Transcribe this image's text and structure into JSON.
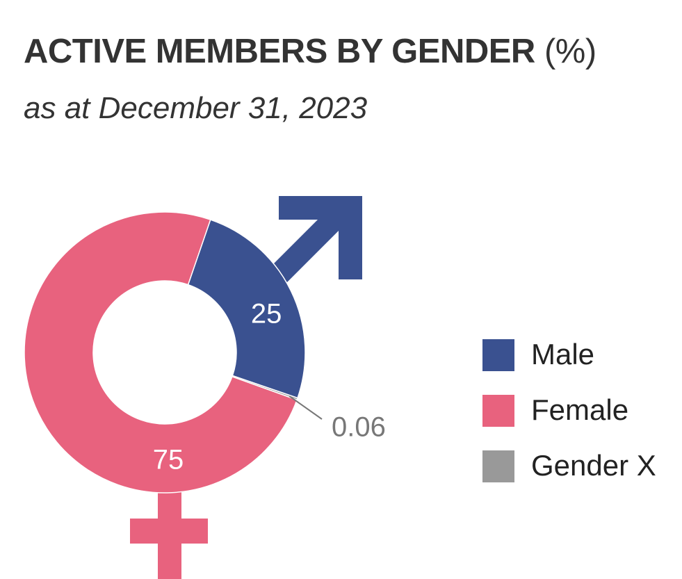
{
  "title": {
    "main": "ACTIVE MEMBERS BY GENDER",
    "unit": "(%)"
  },
  "subtitle": "as at December 31, 2023",
  "chart_data": {
    "type": "pie",
    "variant": "donut",
    "title": "ACTIVE MEMBERS BY GENDER (%)",
    "subtitle": "as at December 31, 2023",
    "categories": [
      "Male",
      "Female",
      "Gender X"
    ],
    "values": [
      25,
      75,
      0.06
    ],
    "data_labels": [
      "25",
      "75",
      "0.06"
    ],
    "colors": [
      "#3a5190",
      "#e8627e",
      "#999999"
    ],
    "legend_position": "right",
    "decorations": [
      "male-symbol-arrow-icon",
      "female-symbol-cross-icon"
    ]
  },
  "legend": [
    {
      "label": "Male",
      "color": "#3a5190"
    },
    {
      "label": "Female",
      "color": "#e8627e"
    },
    {
      "label": "Gender X",
      "color": "#999999"
    }
  ]
}
